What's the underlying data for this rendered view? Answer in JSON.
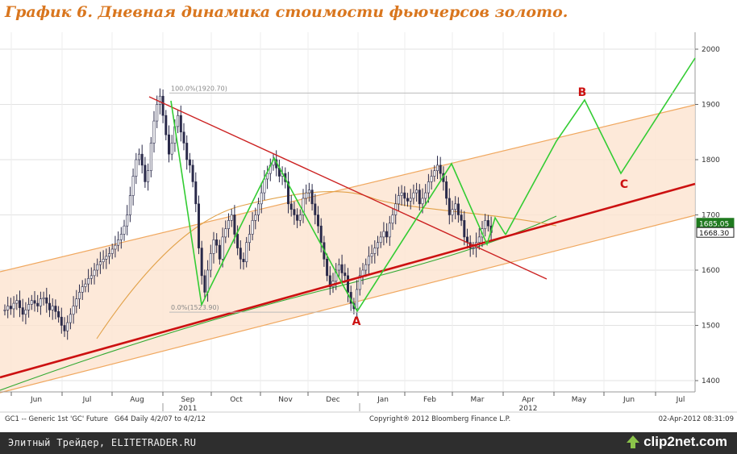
{
  "title": "График 6.   Дневная динамика стоимости фьючерсов золото.",
  "footer": {
    "watermark": "Элитный Трейдер, ELITETRADER.RU",
    "clip_brand": "clip2net.com"
  },
  "colors": {
    "candles": "#2a2a4a",
    "trendline_down": "#cc2222",
    "trendline_up": "#cc1111",
    "channel_fill": "#fde3cf",
    "channel_lines": "#f0a860",
    "wave_lines": "#33cc33",
    "ma_50": "#33aa33",
    "ma_200": "#e2a24a",
    "annotation_text": "#cc1111",
    "fib_lines": "#bbbbbb",
    "price_box_green": "#1f7a1f",
    "title_color": "#d9761e"
  },
  "chart_data": {
    "type": "candlestick",
    "instrument_label": "GC1 -- Generic 1st 'GC' Future",
    "period_label": "G64  Daily  4/2/07 to 4/2/12",
    "copyright": "Copyright® 2012 Bloomberg Finance L.P.",
    "timestamp": "02-Apr-2012 08:31:09",
    "y_ticks": [
      1400,
      1500,
      1600,
      1700,
      1800,
      1900,
      2000
    ],
    "ylim": [
      1380,
      2020
    ],
    "x_ticks": [
      "Jun",
      "Jul",
      "Aug",
      "Sep",
      "Oct",
      "Nov",
      "Dec",
      "Jan",
      "Feb",
      "Mar",
      "Apr",
      "May",
      "Jun",
      "Jul"
    ],
    "year_labels": [
      "2011",
      "2012"
    ],
    "last_price_labels": [
      {
        "value": "1685.05",
        "price": 1685.05,
        "style": "green"
      },
      {
        "value": "1668.30",
        "price": 1668.3,
        "style": "dark"
      }
    ],
    "fibonacci": [
      {
        "label": "100.0%(1920.70)",
        "price": 1920.7
      },
      {
        "label": "0.0%(1523.90)",
        "price": 1523.9
      }
    ],
    "annotations": [
      {
        "label": "A",
        "price": 1507
      },
      {
        "label": "B",
        "price": 1924
      },
      {
        "label": "C",
        "price": 1754
      }
    ],
    "price_path": [
      [
        1528,
        1535,
        1530,
        1540,
        1545,
        1532,
        1520,
        1528,
        1538,
        1545,
        1540,
        1535,
        1548,
        1550,
        1540,
        1528,
        1535,
        1525,
        1515,
        1500,
        1490,
        1505,
        1520,
        1535,
        1548,
        1560,
        1570,
        1575,
        1585,
        1590,
        1600,
        1610,
        1615,
        1620,
        1625,
        1630,
        1638,
        1645,
        1655,
        1665,
        1680,
        1700,
        1735,
        1770,
        1800,
        1810,
        1790,
        1760,
        1780,
        1830,
        1870,
        1900,
        1915,
        1880,
        1845,
        1810,
        1830,
        1860,
        1880,
        1850,
        1830,
        1800,
        1790,
        1760,
        1720,
        1640,
        1590,
        1560,
        1600,
        1630,
        1655,
        1645,
        1620,
        1660,
        1675,
        1690,
        1700,
        1665,
        1640,
        1620,
        1615,
        1650,
        1665,
        1690,
        1700,
        1720,
        1740,
        1765,
        1775,
        1790,
        1800,
        1785,
        1770,
        1775,
        1760,
        1720,
        1710,
        1700,
        1690,
        1700,
        1730,
        1740,
        1745,
        1720,
        1700,
        1680,
        1650,
        1620,
        1590,
        1570,
        1580,
        1600,
        1610,
        1595,
        1590,
        1560,
        1540,
        1530,
        1565,
        1590,
        1600,
        1610,
        1625,
        1630,
        1640,
        1650,
        1660,
        1670,
        1660,
        1685,
        1700,
        1720,
        1735,
        1740,
        1730,
        1725,
        1730,
        1740,
        1745,
        1720,
        1730,
        1740,
        1760,
        1770,
        1780,
        1790,
        1775,
        1760,
        1730,
        1700,
        1710,
        1720,
        1700,
        1690,
        1660,
        1650,
        1640,
        1640,
        1650,
        1660,
        1675,
        1690,
        1680,
        1668
      ]
    ],
    "waves_green": [
      [
        1905,
        1540,
        1790,
        1530,
        1790,
        1635,
        1693,
        1666
      ],
      [
        1666,
        1810,
        1924,
        1754,
        1985
      ]
    ]
  }
}
